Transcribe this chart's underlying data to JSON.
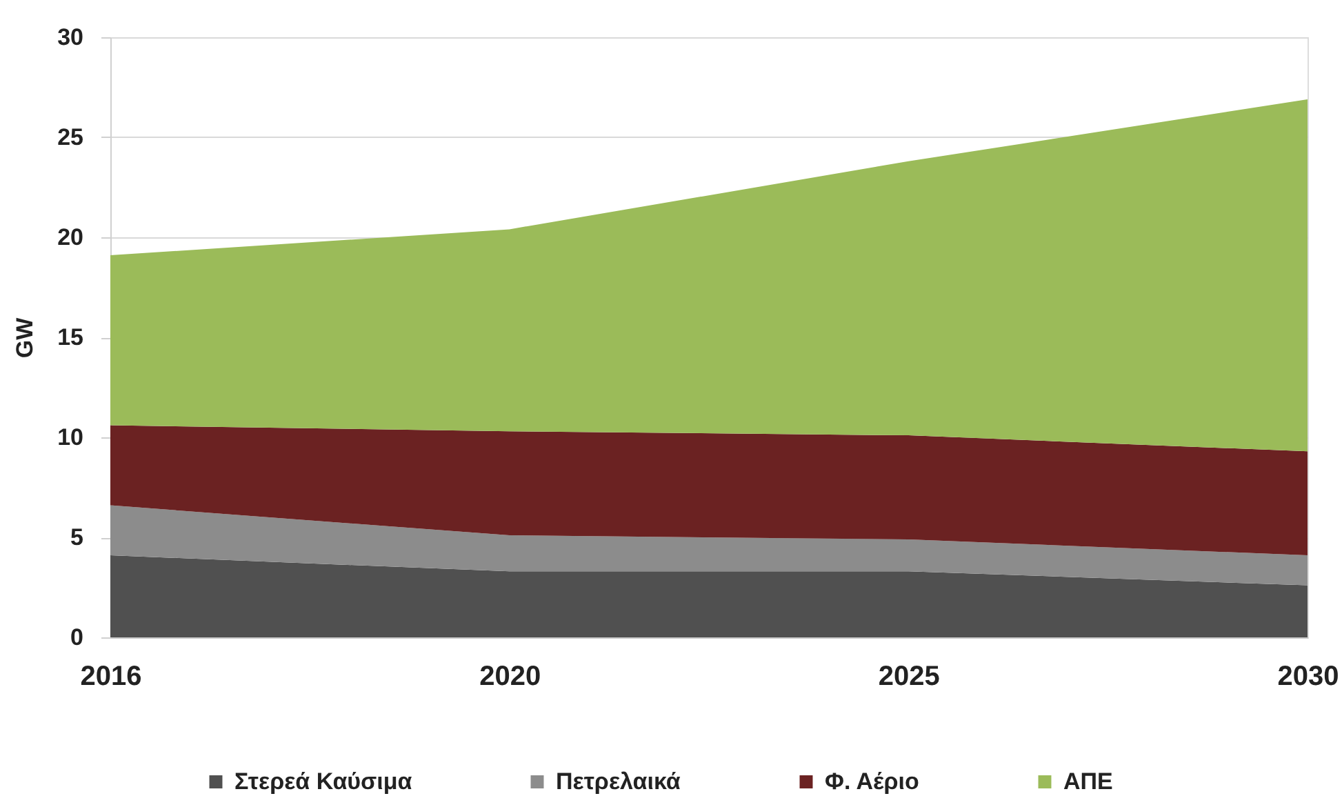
{
  "chart_data": {
    "type": "area",
    "stacked": true,
    "ylabel": "GW",
    "categories": [
      "2016",
      "2020",
      "2025",
      "2030"
    ],
    "series": [
      {
        "name": "Στερεά Καύσιμα",
        "color": "#505050",
        "values": [
          4.1,
          3.3,
          3.3,
          2.6
        ]
      },
      {
        "name": "Πετρελαικά",
        "color": "#8c8c8c",
        "values": [
          2.5,
          1.8,
          1.6,
          1.5
        ]
      },
      {
        "name": "Φ. Αέριο",
        "color": "#6b2222",
        "values": [
          4.0,
          5.2,
          5.2,
          5.2
        ]
      },
      {
        "name": "ΑΠΕ",
        "color": "#9bbb59",
        "values": [
          8.5,
          10.1,
          13.7,
          17.6
        ]
      }
    ],
    "ylim": [
      0,
      30
    ],
    "yticks": [
      0,
      5,
      10,
      15,
      20,
      25,
      30
    ],
    "grid": "y",
    "legend": "bottom"
  }
}
